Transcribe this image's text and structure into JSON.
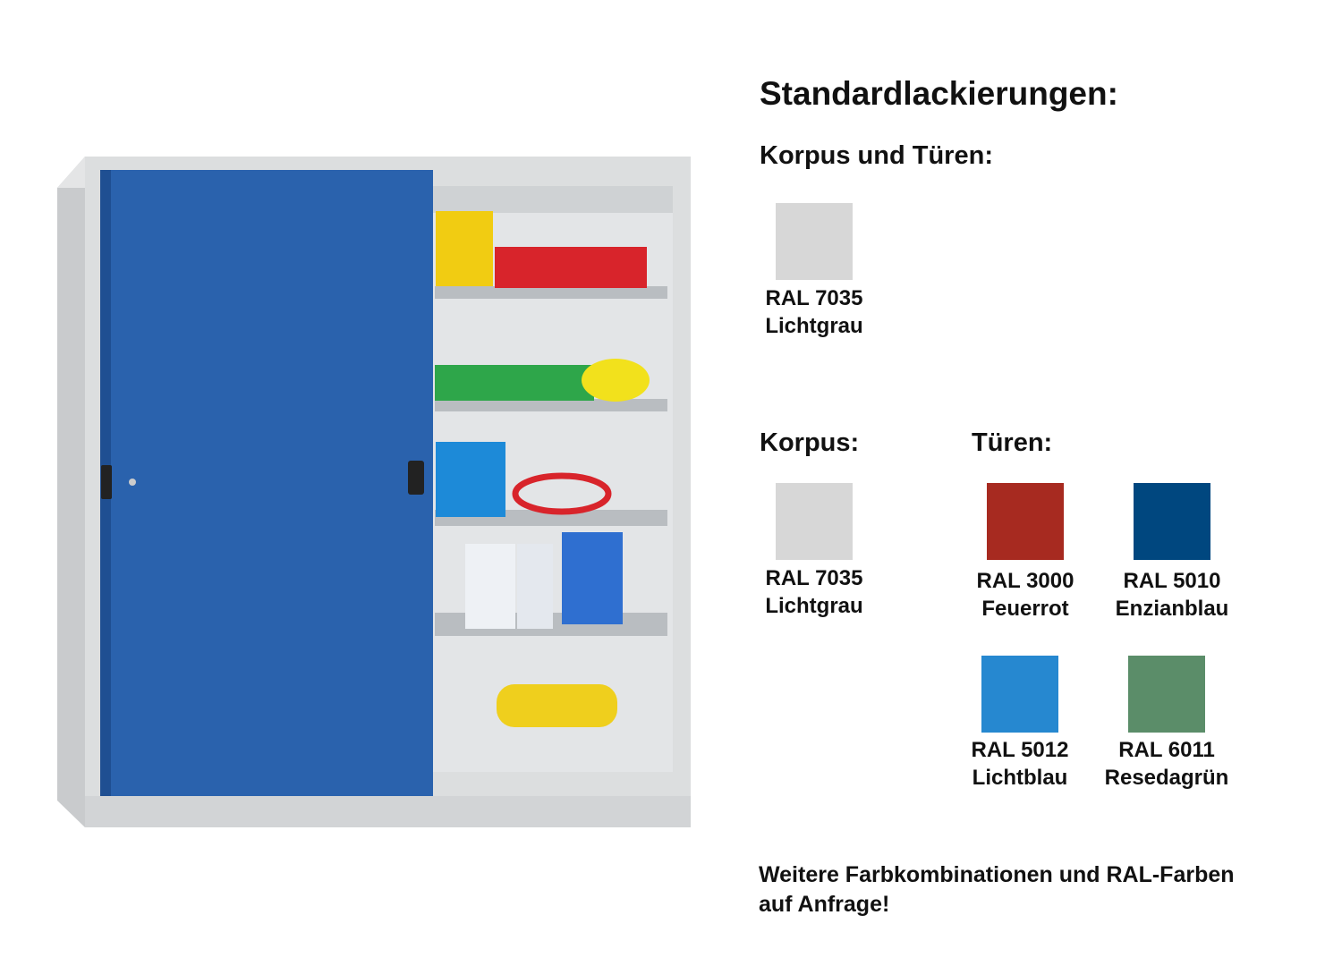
{
  "title": "Standardlackierungen:",
  "section_combined": {
    "heading": "Korpus und Türen:",
    "swatches": [
      {
        "code": "RAL 7035",
        "name": "Lichtgrau",
        "color": "#d7d7d7"
      }
    ]
  },
  "section_body": {
    "heading": "Korpus:",
    "swatches": [
      {
        "code": "RAL 7035",
        "name": "Lichtgrau",
        "color": "#d7d7d7"
      }
    ]
  },
  "section_doors": {
    "heading": "Türen:",
    "swatches": [
      {
        "code": "RAL 3000",
        "name": "Feuerrot",
        "color": "#a72a20"
      },
      {
        "code": "RAL 5010",
        "name": "Enzianblau",
        "color": "#00477f"
      },
      {
        "code": "RAL 5012",
        "name": "Lichtblau",
        "color": "#2688d0"
      },
      {
        "code": "RAL 6011",
        "name": "Resedagrün",
        "color": "#5b8d69"
      }
    ]
  },
  "note_line1": "Weitere Farbkombinationen und RAL-Farben",
  "note_line2": "auf Anfrage!",
  "product_image": {
    "cabinet_color": "#d9dbdc",
    "door_color": "#2a62ad"
  }
}
